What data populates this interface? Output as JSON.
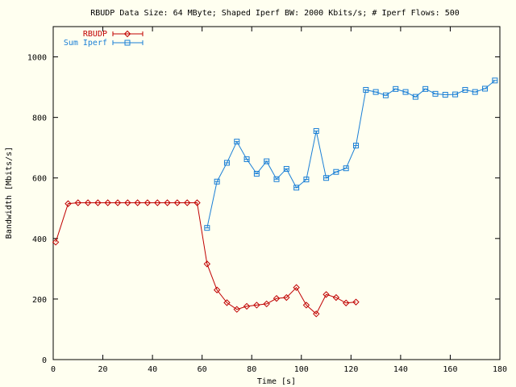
{
  "chart_data": {
    "type": "line",
    "title": "RBUDP Data Size: 64 MByte; Shaped Iperf BW: 2000 Kbits/s; # Iperf Flows: 500",
    "xlabel": "Time [s]",
    "ylabel": "Bandwidth [Mbits/s]",
    "xlim": [
      0,
      180
    ],
    "ylim": [
      0,
      1100
    ],
    "xticks": [
      0,
      20,
      40,
      60,
      80,
      100,
      120,
      140,
      160,
      180
    ],
    "yticks": [
      0,
      200,
      400,
      600,
      800,
      1000
    ],
    "legend": "top-left",
    "grid": false,
    "series": [
      {
        "name": "RBUDP",
        "color": "#c00000",
        "marker": "diamond",
        "x": [
          1,
          6,
          10,
          14,
          18,
          22,
          26,
          30,
          34,
          38,
          42,
          46,
          50,
          54,
          58,
          62,
          66,
          70,
          74,
          78,
          82,
          86,
          90,
          94,
          98,
          102,
          106,
          110,
          114,
          118,
          122
        ],
        "y": [
          388,
          515,
          518,
          518,
          518,
          518,
          518,
          518,
          518,
          518,
          518,
          518,
          518,
          518,
          518,
          316,
          230,
          188,
          166,
          176,
          180,
          184,
          202,
          205,
          238,
          180,
          151,
          215,
          205,
          187,
          190
        ]
      },
      {
        "name": "Sum Iperf",
        "color": "#1a7fd6",
        "marker": "square",
        "x": [
          62,
          66,
          70,
          74,
          78,
          82,
          86,
          90,
          94,
          98,
          102,
          106,
          110,
          114,
          118,
          122,
          126,
          130,
          134,
          138,
          142,
          146,
          150,
          154,
          158,
          162,
          166,
          170,
          174,
          178
        ],
        "y": [
          435,
          588,
          650,
          720,
          662,
          614,
          655,
          596,
          630,
          568,
          595,
          755,
          600,
          620,
          632,
          707,
          891,
          884,
          873,
          894,
          884,
          868,
          894,
          878,
          875,
          876,
          891,
          884,
          895,
          922
        ]
      }
    ]
  }
}
